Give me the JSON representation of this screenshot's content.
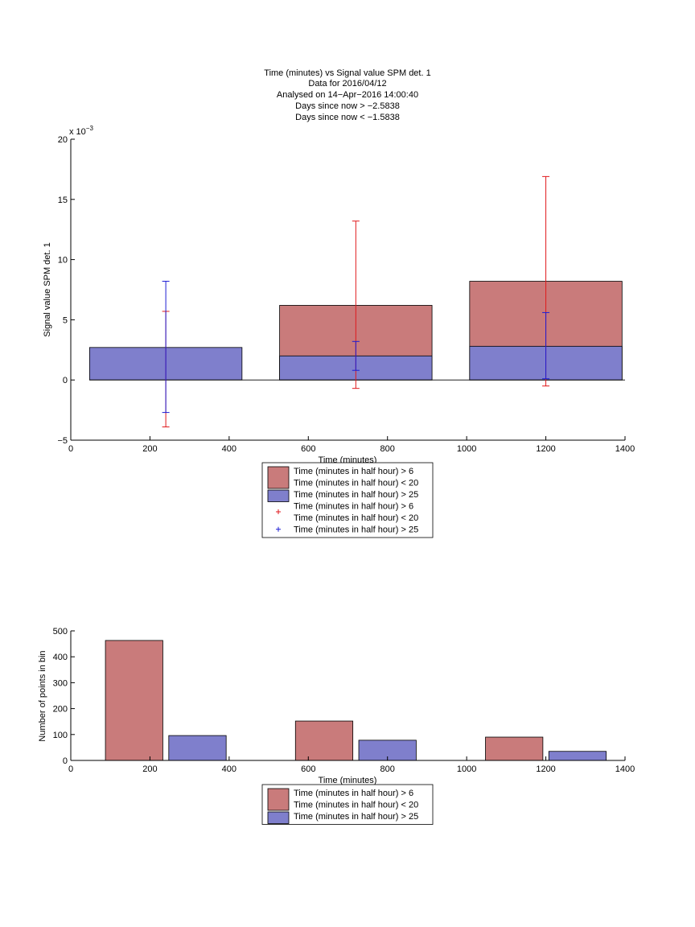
{
  "chart_data": [
    {
      "type": "bar",
      "title_lines": [
        "Time (minutes) vs Signal value SPM det. 1",
        "Data for 2016/04/12",
        "Analysed on 14−Apr−2016 14:00:40",
        "Days since now > −2.5838",
        "Days since now < −1.5838"
      ],
      "xlabel": "Time (minutes)",
      "ylabel": "Signal value SPM det. 1",
      "y_exponent_label": "x 10",
      "y_exponent_power": "−3",
      "xlim": [
        0,
        1400
      ],
      "ylim": [
        -5,
        20
      ],
      "xticks": [
        "0",
        "200",
        "400",
        "600",
        "800",
        "1000",
        "1200",
        "1400"
      ],
      "yticks": [
        "−5",
        "0",
        "5",
        "10",
        "15",
        "20"
      ],
      "bar_width": 385,
      "series": [
        {
          "name": "Time (minutes in half hour) > 6\nTime (minutes in half hour) < 20",
          "color": "#c97b7b",
          "x": [
            240,
            720,
            1200
          ],
          "values": [
            0.0,
            6.2,
            8.2
          ],
          "errorbars": [
            [
              -3.9,
              5.7
            ],
            [
              -0.7,
              13.2
            ],
            [
              -0.5,
              16.9
            ]
          ],
          "error_color": "#e0191c"
        },
        {
          "name": "Time (minutes in half hour) > 25",
          "color": "#7f7fcc",
          "x": [
            240,
            720,
            1200
          ],
          "values": [
            2.7,
            2.0,
            2.8
          ],
          "errorbars": [
            [
              -2.7,
              8.2
            ],
            [
              0.8,
              3.2
            ],
            [
              0.1,
              5.6
            ]
          ],
          "error_color": "#1d1dd4"
        }
      ],
      "legend": [
        {
          "kind": "patch",
          "color": "#c97b7b",
          "lines": [
            "Time (minutes in half hour) > 6",
            "Time (minutes in half hour) < 20"
          ]
        },
        {
          "kind": "patch",
          "color": "#7f7fcc",
          "lines": [
            "Time (minutes in half hour) > 25"
          ]
        },
        {
          "kind": "marker",
          "color": "#e0191c",
          "lines": [
            "Time (minutes in half hour) > 6",
            "Time (minutes in half hour) < 20"
          ]
        },
        {
          "kind": "marker",
          "color": "#1d1dd4",
          "lines": [
            "Time (minutes in half hour) > 25"
          ]
        }
      ],
      "legend_position": "below-axes"
    },
    {
      "type": "bar",
      "xlabel": "Time (minutes)",
      "ylabel": "Number of points in bin",
      "xlim": [
        0,
        1400
      ],
      "ylim": [
        0,
        500
      ],
      "xticks": [
        "0",
        "200",
        "400",
        "600",
        "800",
        "1000",
        "1200",
        "1400"
      ],
      "yticks": [
        "0",
        "100",
        "200",
        "300",
        "400",
        "500"
      ],
      "bar_width": 145,
      "series": [
        {
          "name": "Time (minutes in half hour) > 6\nTime (minutes in half hour) < 20",
          "color": "#c97b7b",
          "x": [
            160,
            640,
            1120
          ],
          "values": [
            463,
            152,
            90
          ]
        },
        {
          "name": "Time (minutes in half hour) > 25",
          "color": "#7f7fcc",
          "x": [
            320,
            800,
            1280
          ],
          "values": [
            96,
            78,
            35
          ]
        }
      ],
      "legend": [
        {
          "kind": "patch",
          "color": "#c97b7b",
          "lines": [
            "Time (minutes in half hour) > 6",
            "Time (minutes in half hour) < 20"
          ]
        },
        {
          "kind": "patch",
          "color": "#7f7fcc",
          "lines": [
            "Time (minutes in half hour) > 25"
          ]
        }
      ],
      "legend_position": "below-axes"
    }
  ]
}
